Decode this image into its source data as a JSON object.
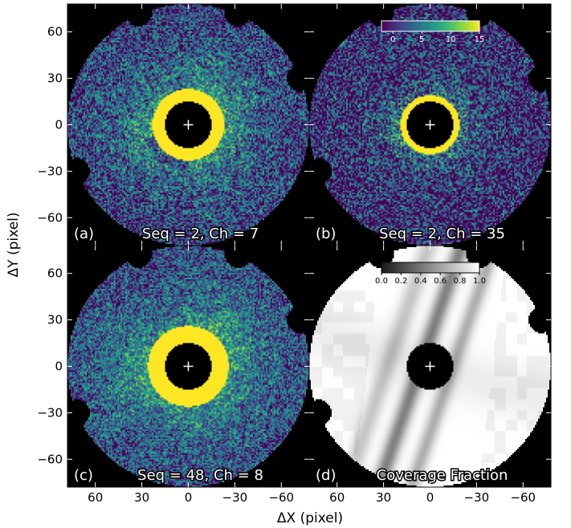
{
  "chart_data": {
    "type": "heatmap",
    "figure": {
      "x_axis_label": "ΔX (pixel)",
      "y_axis_label": "ΔY (pixel)",
      "x_ticks": [
        60,
        30,
        0,
        -30,
        -60
      ],
      "x_tick_labels": [
        "60",
        "30",
        "0",
        "−30",
        "−60"
      ],
      "y_ticks": [
        60,
        30,
        0,
        -30,
        -60
      ],
      "y_tick_labels": [
        "60",
        "30",
        "0",
        "−30",
        "−60"
      ],
      "xlim": [
        78,
        -78
      ],
      "ylim": [
        -78,
        78
      ],
      "x_inverted": true,
      "field_radius": 78,
      "mask_radius": 15,
      "edge_notches": [
        [
          32,
          72
        ],
        [
          -32,
          72
        ],
        [
          -72,
          30
        ],
        [
          72,
          -30
        ]
      ]
    },
    "panels": [
      {
        "id": "a",
        "tag": "(a)",
        "caption": "Seq = 2, Ch = 7",
        "layout": "top-left",
        "kind": "image",
        "seed": 11,
        "noise": 0.34,
        "extent": 21,
        "ramp": 24,
        "base": 0.16,
        "outer": 0.6,
        "swap_scale": true
      },
      {
        "id": "b",
        "tag": "(b)",
        "caption": "Seq = 2, Ch = 35",
        "layout": "top-right",
        "kind": "image",
        "seed": 29,
        "noise": 0.42,
        "extent": 17,
        "ramp": 14,
        "base": 0.1,
        "outer": 0.5,
        "swap_scale": false
      },
      {
        "id": "c",
        "tag": "(c)",
        "caption": "Seq = 48, Ch = 8",
        "layout": "bottom-left",
        "kind": "image",
        "seed": 47,
        "noise": 0.3,
        "extent": 24,
        "ramp": 26,
        "base": 0.2,
        "outer": 0.62,
        "swap_scale": false
      },
      {
        "id": "d",
        "tag": "(d)",
        "caption": "Coverage Fraction",
        "layout": "bottom-right",
        "kind": "coverage"
      }
    ],
    "colorbars": [
      {
        "panel": "b",
        "colormap": "viridis",
        "range": [
          -2,
          15
        ],
        "ticks": [
          0,
          5,
          10,
          15
        ],
        "tick_labels": [
          "0",
          "5",
          "10",
          "15"
        ]
      },
      {
        "panel": "d",
        "colormap": "gray",
        "range": [
          0.0,
          1.0
        ],
        "ticks": [
          0.0,
          0.2,
          0.4,
          0.6,
          0.8,
          1.0
        ],
        "tick_labels": [
          "0.0",
          "0.2",
          "0.4",
          "0.6",
          "0.8",
          "1.0"
        ]
      }
    ],
    "marker": "+",
    "mask_color": "#000000",
    "background_color": "#000000"
  }
}
